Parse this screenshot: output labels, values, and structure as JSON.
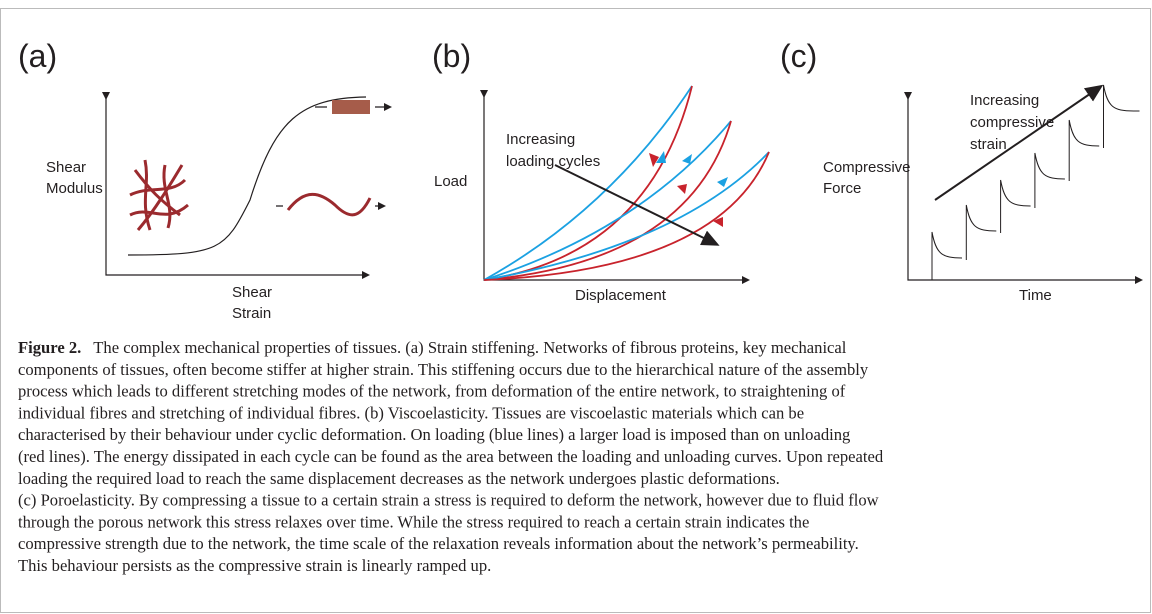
{
  "panels": [
    {
      "label": "(a)",
      "y_label": [
        "Shear",
        "Modulus"
      ],
      "x_label": [
        "Shear",
        "Strain"
      ]
    },
    {
      "label": "(b)",
      "y_label": [
        "Load"
      ],
      "x_label": [
        "Displacement"
      ],
      "annotation": [
        "Increasing",
        "loading cycles"
      ]
    },
    {
      "label": "(c)",
      "y_label": [
        "Compressive",
        "Force"
      ],
      "x_label": [
        "Time"
      ],
      "annotation": [
        "Increasing",
        "compressive",
        "strain"
      ]
    }
  ],
  "caption": {
    "label": "Figure 2.",
    "lines": [
      "The complex mechanical properties of tissues. (a) Strain stiffening. Networks of fibrous proteins, key mechanical",
      "components of tissues, often become stiffer at higher strain. This stiffening occurs due to the hierarchical nature of the assembly",
      "process which leads to different stretching modes of the network, from deformation of the entire network, to straightening of",
      "individual fibres and stretching of individual fibres. (b) Viscoelasticity. Tissues are viscoelastic materials which can be",
      "characterised by their behaviour under cyclic deformation. On loading (blue lines) a larger load is imposed than on unloading",
      "(red lines). The energy dissipated in each cycle can be found as the area between the loading and unloading curves. Upon repeated",
      "loading the required load to reach the same displacement decreases as the network undergoes plastic deformations.",
      "(c) Poroelasticity. By compressing a tissue to a certain strain a stress is required to deform the network, however due to fluid flow",
      "through the porous network this stress relaxes over time. While the stress required to reach a certain strain indicates the",
      "compressive strength due to the network, the time scale of the relaxation reveals information about the network’s permeability.",
      "This behaviour persists as the compressive strain is linearly ramped up."
    ]
  }
}
